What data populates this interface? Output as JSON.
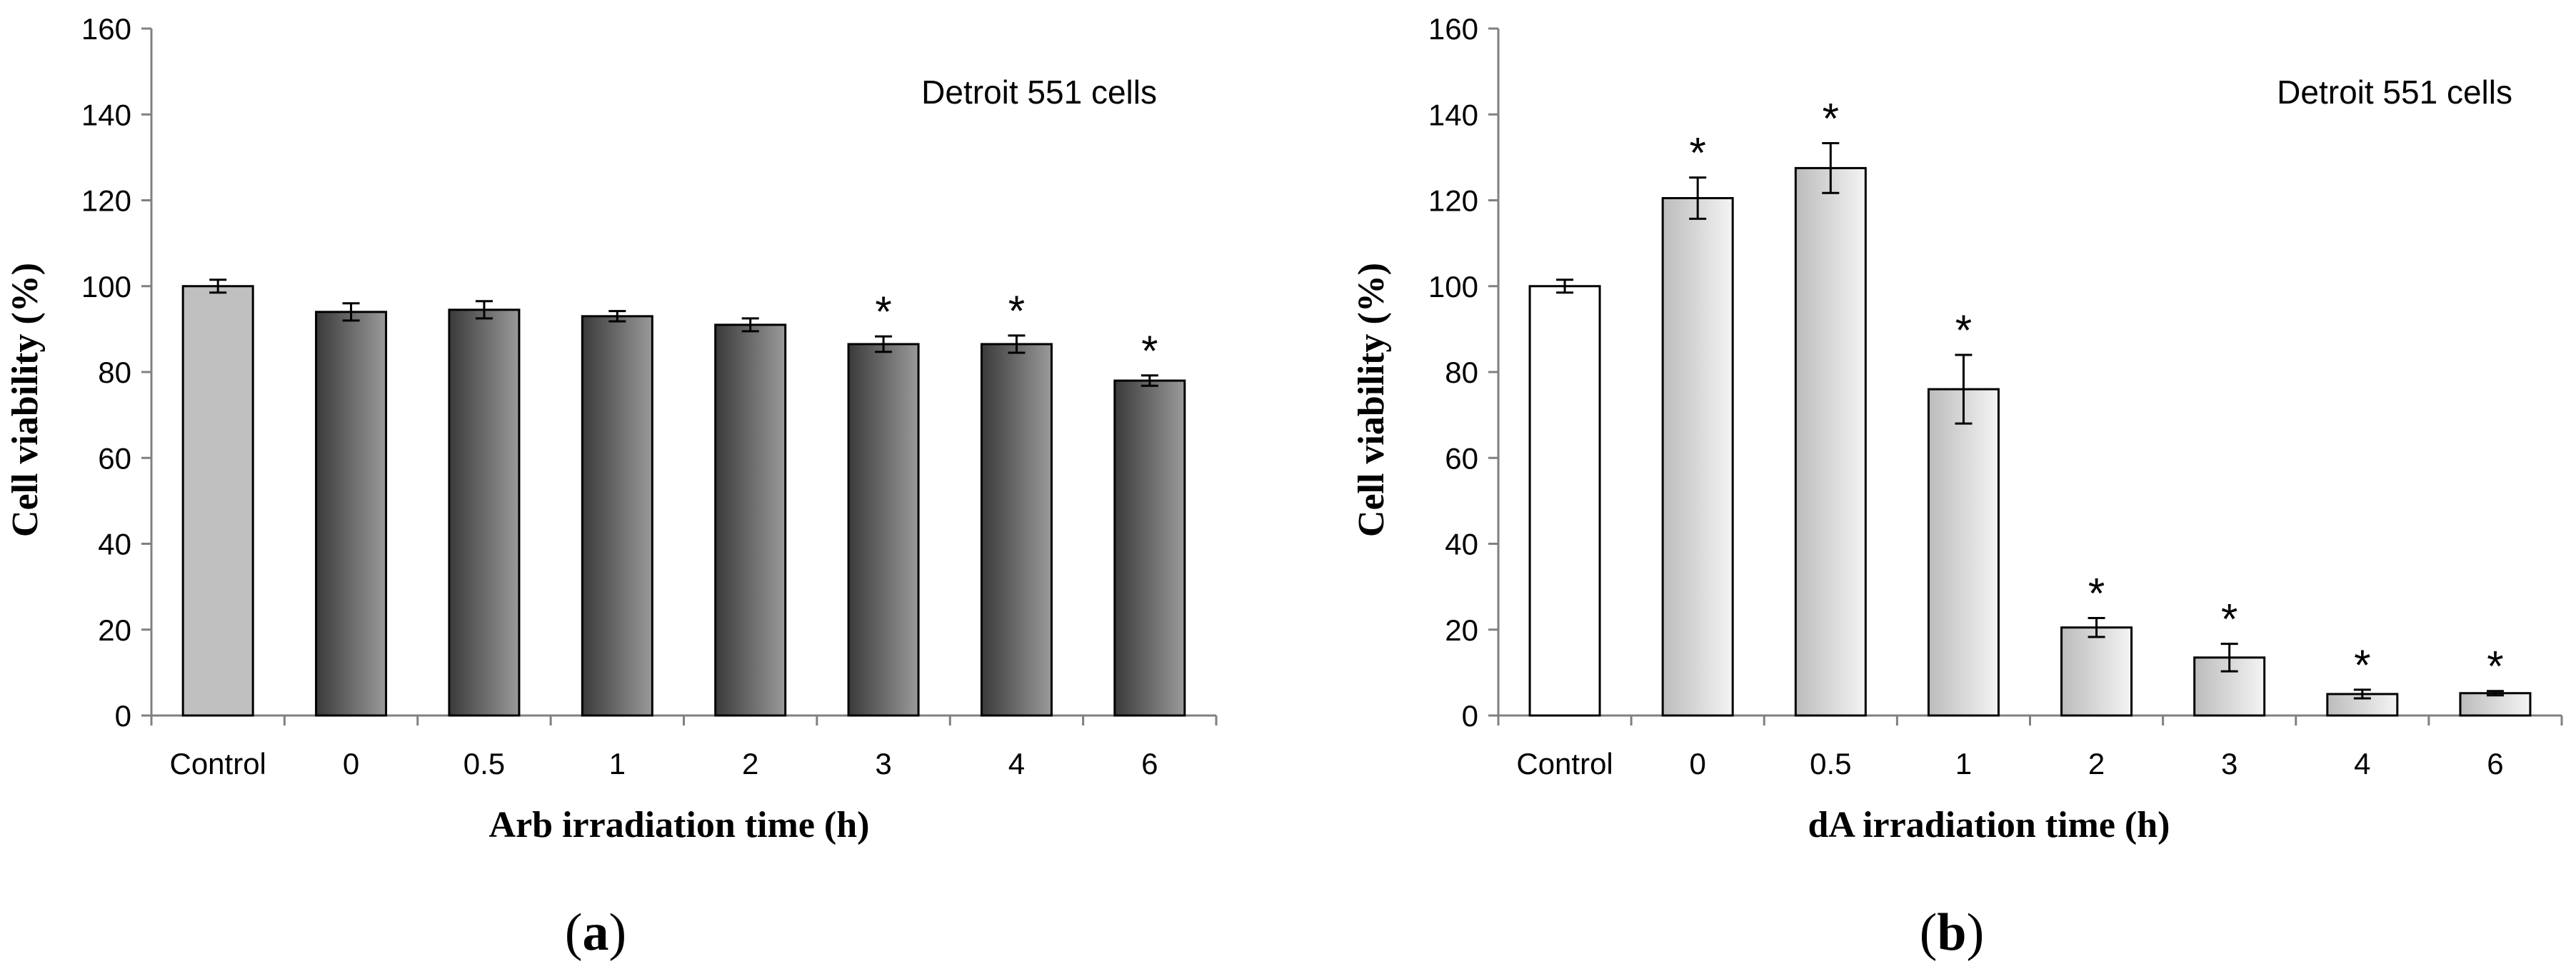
{
  "chart_data": [
    {
      "type": "bar",
      "panel_label": "a",
      "annotation": "Detroit 551 cells",
      "title": "",
      "xlabel": "Arb irradiation time (h)",
      "ylabel": "Cell viability (%)",
      "ylim": [
        0,
        160
      ],
      "yticks": [
        0,
        20,
        40,
        60,
        80,
        100,
        120,
        140,
        160
      ],
      "categories": [
        "Control",
        "0",
        "0.5",
        "1",
        "2",
        "3",
        "4",
        "6"
      ],
      "values": [
        100,
        94,
        94.5,
        93,
        91,
        86.5,
        86.5,
        78
      ],
      "errors": [
        1.5,
        2,
        2,
        1.2,
        1.5,
        1.8,
        2,
        1.2
      ],
      "significant": [
        false,
        false,
        false,
        false,
        false,
        true,
        true,
        true
      ],
      "significance_marker": "*",
      "bar_styles": [
        "control-gray",
        "dark-gradient",
        "dark-gradient",
        "dark-gradient",
        "dark-gradient",
        "dark-gradient",
        "dark-gradient",
        "dark-gradient"
      ],
      "grid": false
    },
    {
      "type": "bar",
      "panel_label": "b",
      "annotation": "Detroit 551 cells",
      "title": "",
      "xlabel": "dA irradiation time (h)",
      "ylabel": "Cell viability (%)",
      "ylim": [
        0,
        160
      ],
      "yticks": [
        0,
        20,
        40,
        60,
        80,
        100,
        120,
        140,
        160
      ],
      "categories": [
        "Control",
        "0",
        "0.5",
        "1",
        "2",
        "3",
        "4",
        "6"
      ],
      "values": [
        100,
        120.5,
        127.5,
        76,
        20.5,
        13.5,
        5,
        5.2
      ],
      "errors": [
        1.5,
        4.8,
        5.8,
        8,
        2.2,
        3.2,
        1,
        0.5
      ],
      "significant": [
        false,
        true,
        true,
        true,
        true,
        true,
        true,
        true
      ],
      "significance_marker": "*",
      "bar_styles": [
        "white",
        "light-gradient",
        "light-gradient",
        "light-gradient",
        "light-gradient",
        "light-gradient",
        "light-gradient",
        "light-gradient"
      ],
      "grid": false
    }
  ],
  "colors": {
    "control_gray": "#c0c0c0",
    "dark_left": "#3a3a3a",
    "dark_right": "#9a9a9a",
    "light_left": "#bcbcbc",
    "light_right": "#f4f4f4",
    "white": "#ffffff",
    "axis": "#808080",
    "stroke": "#000000"
  }
}
